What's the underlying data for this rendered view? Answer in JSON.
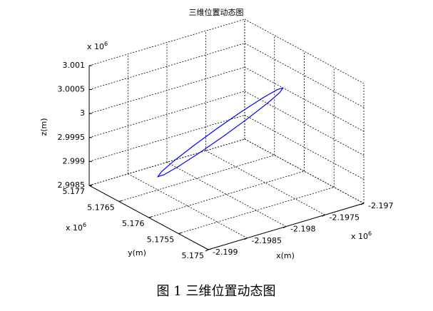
{
  "chart_data": {
    "type": "line3d",
    "title": "三维位置动态图",
    "xlabel": "x(m)",
    "ylabel": "y(m)",
    "zlabel": "z(m)",
    "x_multiplier": {
      "base": "x 10",
      "exponent": "6"
    },
    "y_multiplier": {
      "base": "x 10",
      "exponent": "6"
    },
    "z_multiplier": {
      "base": "x 10",
      "exponent": "6"
    },
    "xlim": [
      -2.199,
      -2.197
    ],
    "xticks": [
      -2.199,
      -2.1985,
      -2.198,
      -2.1975,
      -2.197
    ],
    "ylim": [
      5.175,
      5.177
    ],
    "yticks": [
      5.175,
      5.1755,
      5.176,
      5.1765,
      5.177
    ],
    "zlim": [
      2.9985,
      3.001
    ],
    "zticks": [
      2.9985,
      2.999,
      2.9995,
      3,
      3.0005,
      3.001
    ],
    "grid": true,
    "color": "#0000ff",
    "x": [
      -2.19724,
      -2.197283,
      -2.197435,
      -2.197672,
      -2.19796,
      -2.198254,
      -2.198509,
      -2.198687,
      -2.19876,
      -2.198717,
      -2.198565,
      -2.198328,
      -2.19804,
      -2.197746,
      -2.197491,
      -2.197313,
      -2.19724
    ],
    "y": [
      5.17604,
      5.176083,
      5.176128,
      5.176169,
      5.1762,
      5.176215,
      5.176213,
      5.176194,
      5.17616,
      5.176117,
      5.176072,
      5.176031,
      5.176,
      5.175985,
      5.175987,
      5.176006,
      5.17604
    ],
    "z": [
      3.00033,
      3.000284,
      3.000154,
      2.99996,
      2.99973,
      2.9995,
      2.999306,
      2.999176,
      2.99913,
      2.999176,
      2.999306,
      2.9995,
      2.99973,
      2.99996,
      3.000154,
      3.000284,
      3.00033
    ]
  },
  "caption": "图 1  三维位置动态图"
}
